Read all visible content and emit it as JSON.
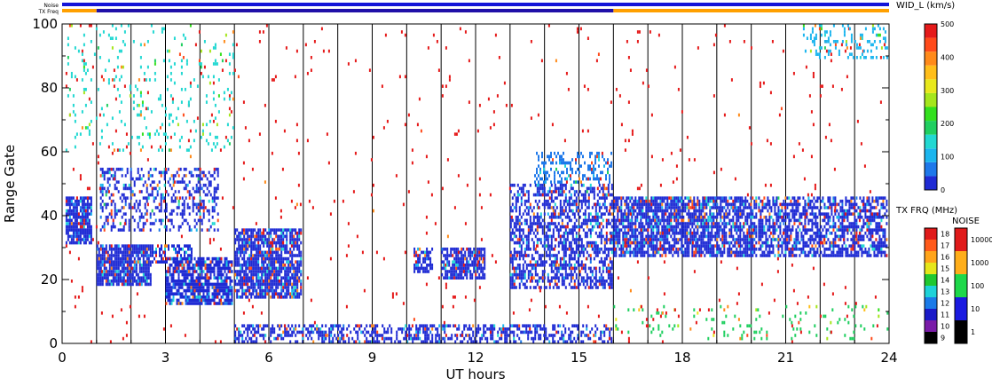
{
  "chart_data": {
    "type": "heatmap",
    "title": "",
    "xlabel": "UT hours",
    "ylabel": "Range Gate",
    "xlim": [
      0,
      24
    ],
    "ylim": [
      0,
      100
    ],
    "x_ticks": [
      "0",
      "3",
      "6",
      "9",
      "12",
      "15",
      "18",
      "21",
      "24"
    ],
    "y_ticks": [
      "0",
      "20",
      "40",
      "60",
      "80",
      "100"
    ],
    "hour_lines": [
      1,
      2,
      3,
      4,
      5,
      6,
      7,
      8,
      9,
      10,
      11,
      12,
      13,
      14,
      15,
      16,
      17,
      18,
      19,
      20,
      21,
      22,
      23
    ],
    "status_bars": [
      {
        "label": "Noise",
        "segments": [
          {
            "from": 0,
            "to": 24,
            "color": "#1414d8"
          }
        ]
      },
      {
        "label": "TX Freq",
        "segments": [
          {
            "from": 0,
            "to": 1,
            "color": "#ffa000"
          },
          {
            "from": 1,
            "to": 16,
            "color": "#2010a8"
          },
          {
            "from": 16,
            "to": 24,
            "color": "#ffa000"
          }
        ]
      }
    ],
    "scatter_regions": [
      {
        "x": [
          0.1,
          0.9
        ],
        "y": [
          30,
          46
        ],
        "density": 0.85,
        "color_value": 25
      },
      {
        "x": [
          1.0,
          2.6
        ],
        "y": [
          18,
          31
        ],
        "density": 0.85,
        "color_value": 25
      },
      {
        "x": [
          2.6,
          3.8
        ],
        "y": [
          25,
          31
        ],
        "density": 0.55,
        "color_value": 30
      },
      {
        "x": [
          1.1,
          4.6
        ],
        "y": [
          35,
          55
        ],
        "density": 0.35,
        "color_value": 40
      },
      {
        "x": [
          3.0,
          5.0
        ],
        "y": [
          12,
          27
        ],
        "density": 0.75,
        "color_value": 25
      },
      {
        "x": [
          5.0,
          7.0
        ],
        "y": [
          14,
          36
        ],
        "density": 0.8,
        "color_value": 25
      },
      {
        "x": [
          10.2,
          10.8
        ],
        "y": [
          22,
          30
        ],
        "density": 0.6,
        "color_value": 30
      },
      {
        "x": [
          11.0,
          12.3
        ],
        "y": [
          20,
          30
        ],
        "density": 0.7,
        "color_value": 25
      },
      {
        "x": [
          13.0,
          16.0
        ],
        "y": [
          17,
          50
        ],
        "density": 0.55,
        "color_value": 30
      },
      {
        "x": [
          13.7,
          16.0
        ],
        "y": [
          50,
          60
        ],
        "density": 0.35,
        "color_value": 60
      },
      {
        "x": [
          16.0,
          20.2
        ],
        "y": [
          26,
          46
        ],
        "density": 0.75,
        "color_value": 25
      },
      {
        "x": [
          20.2,
          24.0
        ],
        "y": [
          26,
          46
        ],
        "density": 0.6,
        "color_value": 30
      },
      {
        "x": [
          5.0,
          16.0
        ],
        "y": [
          0,
          6
        ],
        "density": 0.45,
        "color_value": 15
      },
      {
        "x": [
          16.0,
          24.0
        ],
        "y": [
          0,
          12
        ],
        "density": 0.06,
        "color_value": 200
      },
      {
        "x": [
          0.1,
          24.0
        ],
        "y": [
          0,
          100
        ],
        "density": 0.012,
        "color_value": 480
      },
      {
        "x": [
          0.1,
          5.0
        ],
        "y": [
          60,
          100
        ],
        "density": 0.08,
        "color_value": 150
      },
      {
        "x": [
          21.5,
          24.0
        ],
        "y": [
          88,
          100
        ],
        "density": 0.2,
        "color_value": 120
      }
    ],
    "colorbar_width": {
      "label": "WID_L (km/s)",
      "min": 0,
      "max": 500,
      "ticks": [
        "0",
        "100",
        "200",
        "300",
        "400",
        "500"
      ],
      "colors": [
        "#1f2bd4",
        "#1e78ea",
        "#1bb5ee",
        "#22d8d2",
        "#20cf60",
        "#33e01e",
        "#a5e61c",
        "#e8e81c",
        "#ffbe1a",
        "#ff8a1a",
        "#ff4a1a",
        "#e51a1a"
      ]
    },
    "colorbar_txfreq": {
      "label": "TX FRQ (MHz)",
      "ticks": [
        "9",
        "10",
        "11",
        "12",
        "13",
        "14",
        "15",
        "16",
        "17",
        "18"
      ],
      "colors": [
        "#000000",
        "#7a1ca8",
        "#1a1ac8",
        "#1a7ae8",
        "#1ed2d8",
        "#20c830",
        "#e6e61a",
        "#ffa41a",
        "#ff5a1a",
        "#e01a1a"
      ]
    },
    "colorbar_noise": {
      "label": "NOISE",
      "ticks": [
        "1",
        "10",
        "100",
        "1000",
        "10000"
      ],
      "colors": [
        "#000000",
        "#1a1ae0",
        "#1ed84a",
        "#ffae1a",
        "#e01a1a"
      ]
    }
  }
}
